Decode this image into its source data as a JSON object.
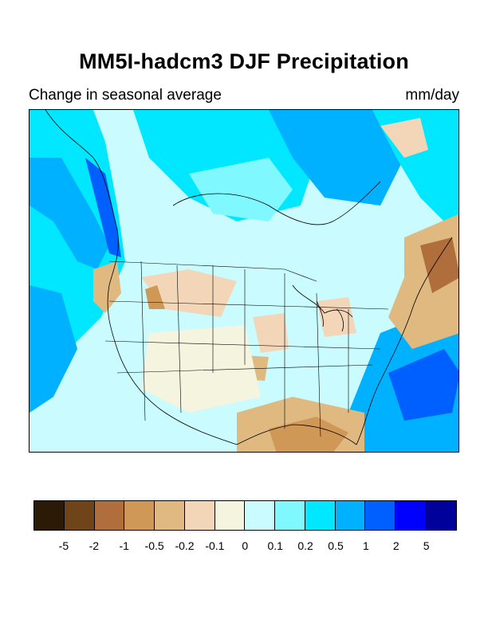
{
  "title": "MM5I-hadcm3 DJF Precipitation",
  "subtitle": "Change in seasonal average",
  "units": "mm/day",
  "colorbar": {
    "colors": [
      "#2b1a05",
      "#6e4418",
      "#b06e3c",
      "#cf9857",
      "#dfb980",
      "#f3d6b7",
      "#f5f4df",
      "#c9fbff",
      "#80f8ff",
      "#00e7ff",
      "#00b1ff",
      "#0060ff",
      "#0000ff",
      "#00009b"
    ],
    "tick_labels": [
      "-5",
      "-2",
      "-1",
      "-0.5",
      "-0.2",
      "-0.1",
      "0",
      "0.1",
      "0.2",
      "0.5",
      "1",
      "2",
      "5"
    ]
  }
}
